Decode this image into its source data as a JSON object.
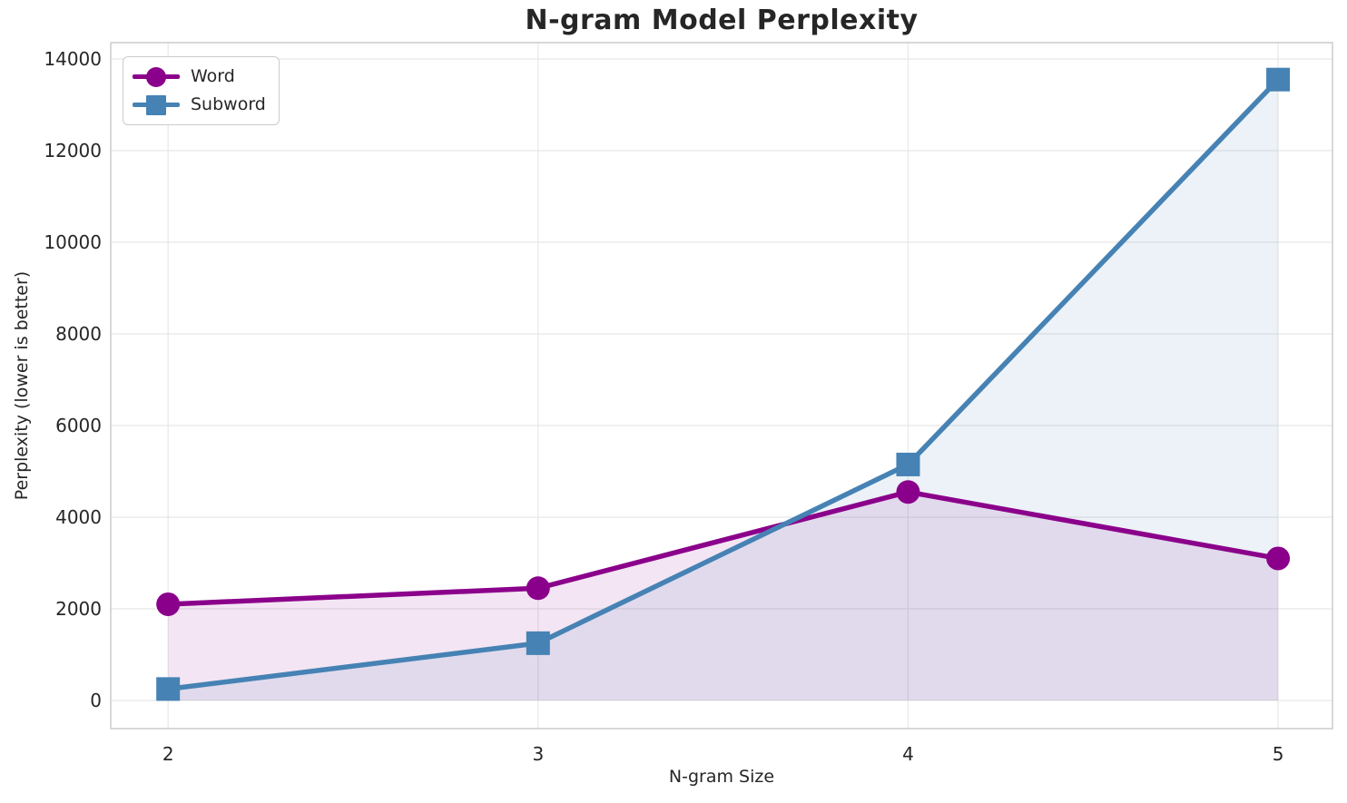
{
  "chart_data": {
    "type": "line",
    "title": "N-gram Model Perplexity",
    "xlabel": "N-gram Size",
    "ylabel": "Perplexity (lower is better)",
    "x": [
      2,
      3,
      4,
      5
    ],
    "xtick_labels": [
      "2",
      "3",
      "4",
      "5"
    ],
    "yticks": [
      0,
      2000,
      4000,
      6000,
      8000,
      10000,
      12000,
      14000
    ],
    "ytick_labels": [
      "0",
      "2000",
      "4000",
      "6000",
      "8000",
      "10000",
      "12000",
      "14000"
    ],
    "xlim": [
      1.845,
      5.147
    ],
    "ylim": [
      -614,
      14356
    ],
    "grid": true,
    "legend_position": "upper left",
    "series": [
      {
        "name": "Word",
        "values": [
          2100,
          2450,
          4550,
          3100
        ],
        "color": "#8B008B",
        "marker": "circle",
        "fill_alpha": 0.1
      },
      {
        "name": "Subword",
        "values": [
          250,
          1250,
          5150,
          13550
        ],
        "color": "#4682B4",
        "marker": "square",
        "fill_alpha": 0.1
      }
    ]
  },
  "colors": {
    "background": "#ffffff",
    "grid": "#e7e7e7",
    "spine": "#cccccc",
    "text": "#262626"
  }
}
